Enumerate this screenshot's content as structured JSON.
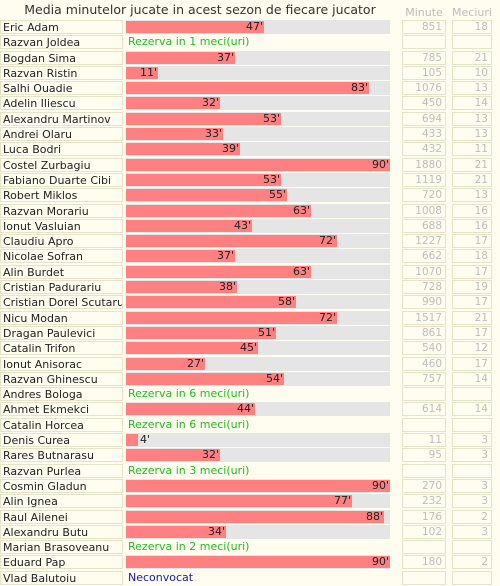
{
  "title": "Media minutelor jucate in acest sezon de fiecare jucator",
  "columns": {
    "minutes": "Minute",
    "matches": "Meciuri"
  },
  "chart_data": {
    "type": "bar",
    "value_max": 90,
    "unit": "'",
    "rows": [
      {
        "name": "Eric Adam",
        "value": 47,
        "minutes": "851",
        "matches": "18"
      },
      {
        "name": "Razvan Joldea",
        "note": "Rezerva in 1 meci(uri)",
        "minutes": "",
        "matches": ""
      },
      {
        "name": "Bogdan Sima",
        "value": 37,
        "minutes": "785",
        "matches": "21"
      },
      {
        "name": "Razvan Ristin",
        "value": 11,
        "minutes": "105",
        "matches": "10"
      },
      {
        "name": "Salhi Ouadie",
        "value": 83,
        "minutes": "1076",
        "matches": "13"
      },
      {
        "name": "Adelin Iliescu",
        "value": 32,
        "minutes": "450",
        "matches": "14"
      },
      {
        "name": "Alexandru Martinov",
        "value": 53,
        "minutes": "694",
        "matches": "13"
      },
      {
        "name": "Andrei Olaru",
        "value": 33,
        "minutes": "433",
        "matches": "13"
      },
      {
        "name": "Luca Bodri",
        "value": 39,
        "minutes": "432",
        "matches": "11"
      },
      {
        "name": "Costel Zurbagiu",
        "value": 90,
        "minutes": "1880",
        "matches": "21"
      },
      {
        "name": "Fabiano Duarte Cibi",
        "value": 53,
        "minutes": "1119",
        "matches": "21"
      },
      {
        "name": "Robert Miklos",
        "value": 55,
        "minutes": "720",
        "matches": "13"
      },
      {
        "name": "Razvan Morariu",
        "value": 63,
        "minutes": "1008",
        "matches": "16"
      },
      {
        "name": "Ionut Vasluian",
        "value": 43,
        "minutes": "688",
        "matches": "16"
      },
      {
        "name": "Claudiu Apro",
        "value": 72,
        "minutes": "1227",
        "matches": "17"
      },
      {
        "name": "Nicolae Sofran",
        "value": 37,
        "minutes": "662",
        "matches": "18"
      },
      {
        "name": "Alin Burdet",
        "value": 63,
        "minutes": "1070",
        "matches": "17"
      },
      {
        "name": "Cristian Padurariu",
        "value": 38,
        "minutes": "728",
        "matches": "19"
      },
      {
        "name": "Cristian Dorel Scutaru",
        "value": 58,
        "minutes": "990",
        "matches": "17"
      },
      {
        "name": "Nicu Modan",
        "value": 72,
        "minutes": "1517",
        "matches": "21"
      },
      {
        "name": "Dragan Paulevici",
        "value": 51,
        "minutes": "861",
        "matches": "17"
      },
      {
        "name": "Catalin Trifon",
        "value": 45,
        "minutes": "540",
        "matches": "12"
      },
      {
        "name": "Ionut Anisorac",
        "value": 27,
        "minutes": "460",
        "matches": "17"
      },
      {
        "name": "Razvan Ghinescu",
        "value": 54,
        "minutes": "757",
        "matches": "14"
      },
      {
        "name": "Andres Bologa",
        "note": "Rezerva in 6 meci(uri)",
        "minutes": "",
        "matches": ""
      },
      {
        "name": "Ahmet Ekmekci",
        "value": 44,
        "minutes": "614",
        "matches": "14"
      },
      {
        "name": "Catalin Horcea",
        "note": "Rezerva in 6 meci(uri)",
        "minutes": "",
        "matches": ""
      },
      {
        "name": "Denis Curea",
        "value": 4,
        "minutes": "11",
        "matches": "3"
      },
      {
        "name": "Rares Butnarasu",
        "value": 32,
        "minutes": "95",
        "matches": "3"
      },
      {
        "name": "Razvan Purlea",
        "note": "Rezerva in 3 meci(uri)",
        "minutes": "",
        "matches": ""
      },
      {
        "name": "Cosmin Gladun",
        "value": 90,
        "minutes": "270",
        "matches": "3"
      },
      {
        "name": "Alin Ignea",
        "value": 77,
        "minutes": "232",
        "matches": "3"
      },
      {
        "name": "Raul Ailenei",
        "value": 88,
        "minutes": "176",
        "matches": "2"
      },
      {
        "name": "Alexandru Butu",
        "value": 34,
        "minutes": "102",
        "matches": "3"
      },
      {
        "name": "Marian Brasoveanu",
        "note": "Rezerva in 2 meci(uri)",
        "minutes": "",
        "matches": ""
      },
      {
        "name": "Eduard Pap",
        "value": 90,
        "minutes": "180",
        "matches": "2"
      },
      {
        "name": "Vlad Balutoiu",
        "note": "Neconvocat",
        "note_color": "#1a1aaa",
        "minutes": "",
        "matches": ""
      }
    ]
  },
  "colors": {
    "bar": "#ff8080",
    "track": "#e5e5e5",
    "note_green": "#22bb22",
    "note_blue": "#1a1aaa"
  }
}
